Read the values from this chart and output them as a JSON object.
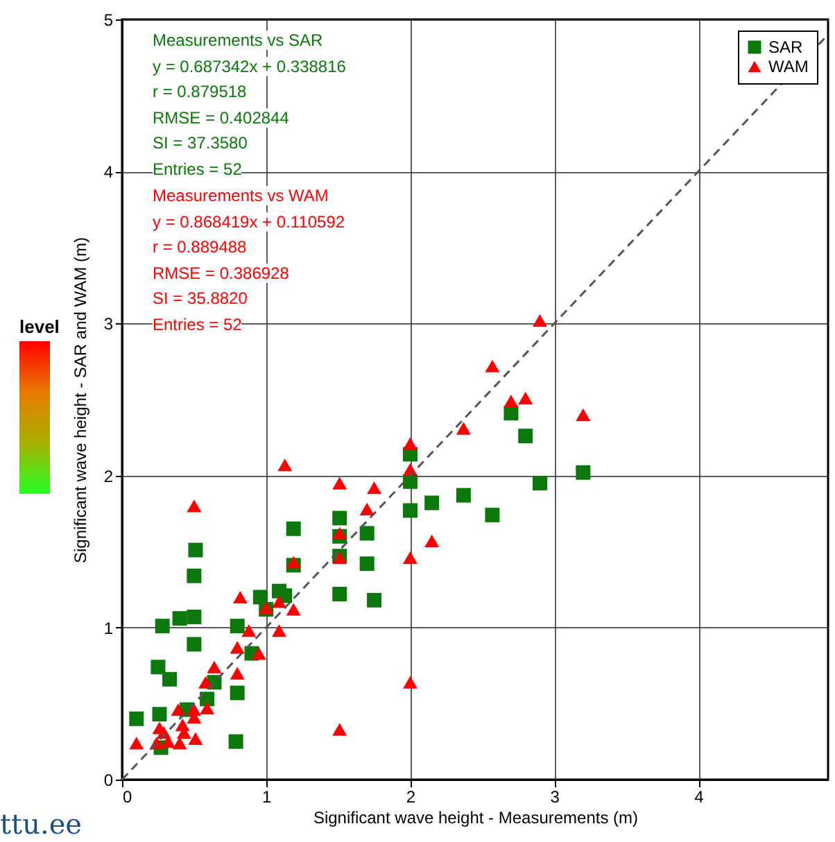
{
  "chart_data": {
    "type": "scatter",
    "xlabel": "Significant wave height - Measurements (m)",
    "ylabel": "Significant wave height - SAR and WAM (m)",
    "xlim": [
      0,
      4.9
    ],
    "ylim": [
      0,
      5
    ],
    "xticks": [
      0,
      1,
      2,
      3,
      4
    ],
    "yticks": [
      0,
      1,
      2,
      3,
      4,
      5
    ],
    "grid": true,
    "legend": "top right",
    "annotations": [
      "Measurements vs SAR",
      "y = 0.687342x + 0.338816",
      "r = 0.879518",
      "RMSE = 0.402844",
      "SI = 37.3580",
      "Entries = 52",
      "Measurements vs WAM",
      "y = 0.868419x + 0.110592",
      "r = 0.889488",
      "RMSE = 0.386928",
      "SI = 35.8820",
      "Entries = 52",
      "level",
      "ttu.ee"
    ],
    "series": [
      {
        "name": "SAR",
        "color": "#0a780a",
        "marker": "square",
        "x": [
          0.1,
          0.26,
          0.28,
          0.25,
          0.33,
          0.4,
          0.5,
          0.5,
          0.51,
          0.5,
          0.27,
          0.45,
          0.64,
          0.59,
          0.8,
          0.8,
          0.79,
          0.9,
          0.96,
          1.0,
          1.09,
          1.13,
          1.19,
          1.19,
          1.51,
          1.51,
          1.51,
          1.51,
          1.7,
          1.7,
          1.75,
          2.0,
          2.0,
          2.0,
          2.15,
          2.37,
          2.57,
          2.7,
          2.8,
          2.9,
          3.2
        ],
        "values": [
          0.4,
          0.43,
          1.01,
          0.74,
          0.66,
          1.06,
          1.07,
          1.34,
          1.51,
          0.89,
          0.21,
          0.46,
          0.64,
          0.53,
          1.01,
          0.57,
          0.25,
          0.83,
          1.2,
          1.12,
          1.24,
          1.21,
          1.65,
          1.41,
          1.72,
          1.6,
          1.47,
          1.22,
          1.62,
          1.42,
          1.18,
          2.14,
          1.96,
          1.77,
          1.82,
          1.87,
          1.74,
          2.41,
          2.26,
          1.95,
          2.02
        ]
      },
      {
        "name": "WAM",
        "color": "#ff0000",
        "marker": "triangle",
        "x": [
          0.1,
          0.26,
          0.24,
          0.29,
          0.32,
          0.4,
          0.39,
          0.42,
          0.43,
          0.5,
          0.5,
          0.51,
          0.59,
          0.58,
          0.64,
          0.8,
          0.8,
          0.82,
          0.88,
          0.95,
          1.0,
          1.09,
          1.09,
          1.19,
          1.19,
          0.5,
          1.13,
          1.51,
          1.51,
          1.51,
          1.51,
          1.7,
          1.75,
          2.0,
          2.0,
          2.0,
          2.15,
          2.0,
          2.37,
          2.57,
          2.7,
          2.8,
          2.9,
          3.2
        ],
        "values": [
          0.24,
          0.34,
          0.24,
          0.31,
          0.25,
          0.24,
          0.46,
          0.36,
          0.31,
          0.46,
          0.41,
          0.27,
          0.47,
          0.64,
          0.74,
          0.7,
          0.87,
          1.2,
          0.98,
          0.83,
          1.13,
          1.17,
          0.98,
          1.12,
          1.43,
          1.8,
          2.07,
          1.95,
          1.62,
          1.46,
          0.33,
          1.78,
          1.92,
          2.04,
          1.46,
          0.64,
          1.57,
          2.21,
          2.31,
          2.72,
          2.49,
          2.51,
          3.02,
          2.4
        ]
      },
      {
        "type": "line",
        "color": "#555555",
        "line_style": "dashed",
        "marker": "none",
        "x": [
          0,
          4.9
        ],
        "values": [
          0,
          4.9
        ]
      }
    ]
  }
}
